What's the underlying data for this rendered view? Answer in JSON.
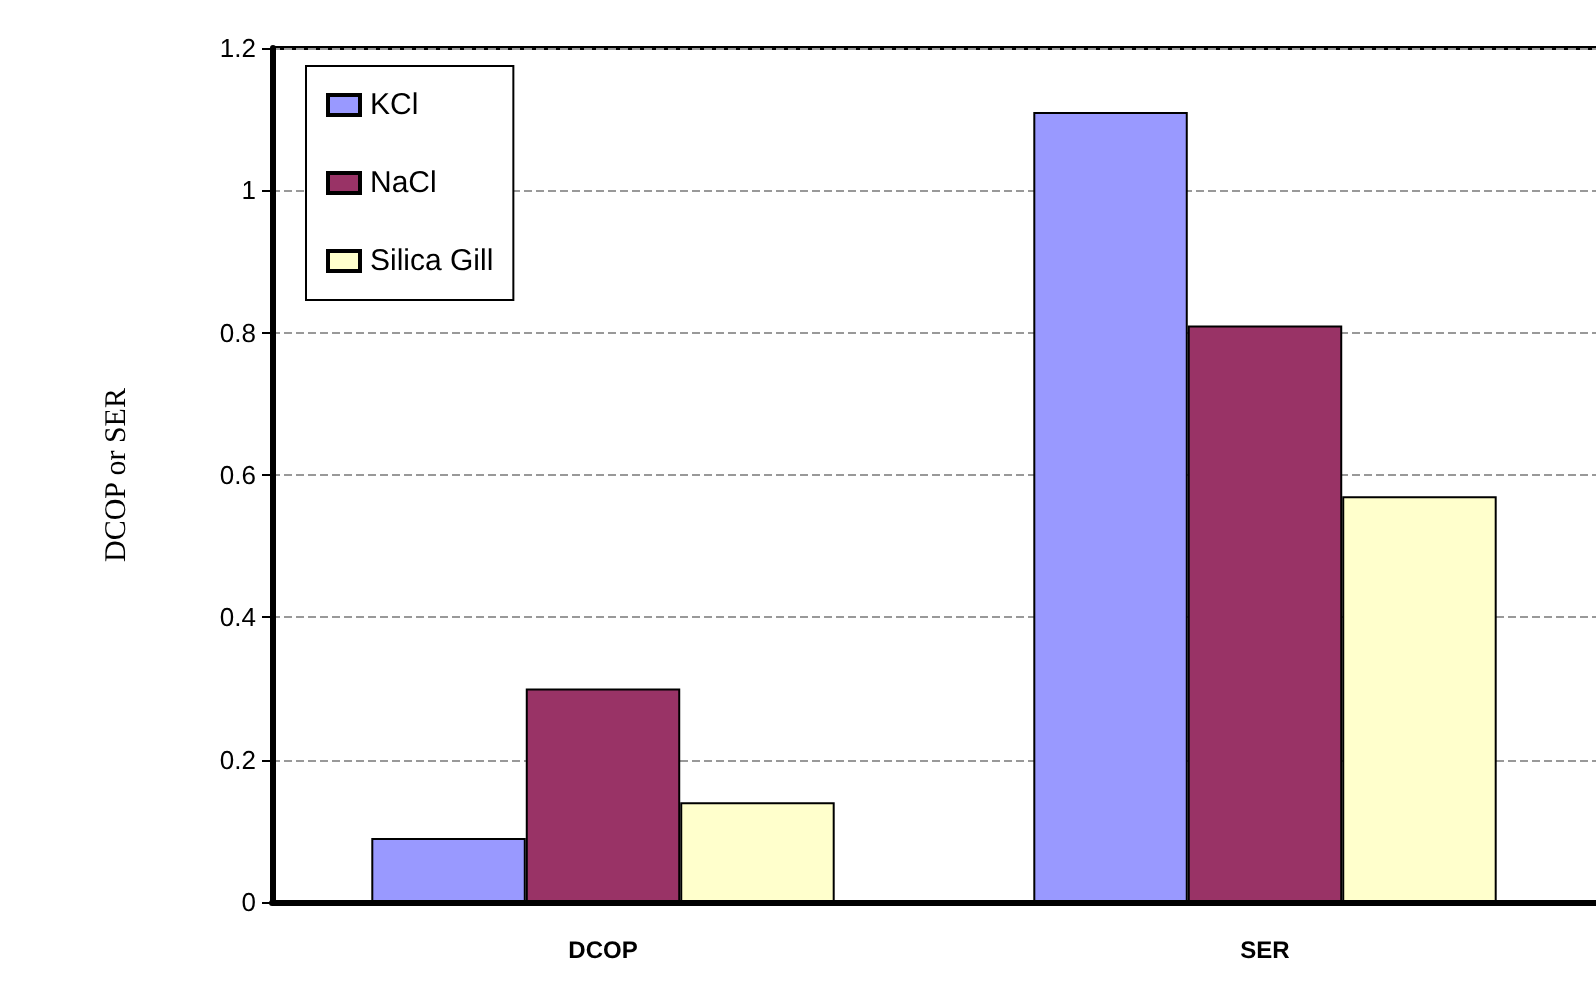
{
  "chart_data": {
    "type": "bar",
    "ylabel": "DCOP or SER",
    "categories": [
      "DCOP",
      "SER"
    ],
    "series": [
      {
        "name": "KCl",
        "color": "#9999ff",
        "values": [
          0.09,
          1.11
        ]
      },
      {
        "name": "NaCl",
        "color": "#993366",
        "values": [
          0.3,
          0.81
        ]
      },
      {
        "name": "Silica Gill",
        "color": "#ffffcc",
        "values": [
          0.14,
          0.57
        ]
      }
    ],
    "ylim": [
      0,
      1.2
    ],
    "yticks": [
      0,
      0.2,
      0.4,
      0.6,
      0.8,
      1,
      1.2
    ],
    "grid": "y",
    "legend": "top left"
  }
}
